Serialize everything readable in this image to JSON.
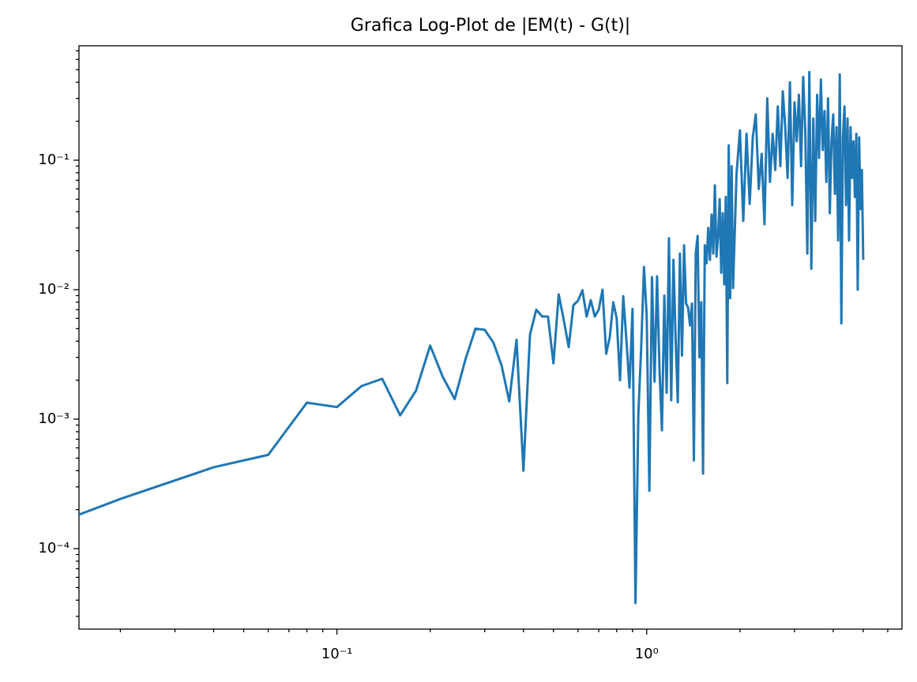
{
  "chart_data": {
    "type": "line",
    "title": "Grafica Log-Plot de |EM(t) - G(t)|",
    "xscale": "log",
    "yscale": "log",
    "grid": false,
    "xlim": [
      0.0147,
      6.67
    ],
    "ylim": [
      2.39e-05,
      0.765
    ],
    "xticks": [
      {
        "value": 0.1,
        "label": "10⁻¹"
      },
      {
        "value": 1,
        "label": "10⁰"
      }
    ],
    "yticks": [
      {
        "value": 0.0001,
        "label": "10⁻⁴"
      },
      {
        "value": 0.001,
        "label": "10⁻³"
      },
      {
        "value": 0.01,
        "label": "10⁻²"
      },
      {
        "value": 0.1,
        "label": "10⁻¹"
      }
    ],
    "xminorticks": [
      0.02,
      0.03,
      0.04,
      0.05,
      0.06,
      0.07,
      0.08,
      0.09,
      0.2,
      0.3,
      0.4,
      0.5,
      0.6,
      0.7,
      0.8,
      0.9,
      2,
      3,
      4,
      5,
      6
    ],
    "yminorticks": [
      3e-05,
      4e-05,
      5e-05,
      6e-05,
      7e-05,
      8e-05,
      9e-05,
      0.0002,
      0.0003,
      0.0004,
      0.0005,
      0.0006,
      0.0007,
      0.0008,
      0.0009,
      0.002,
      0.003,
      0.004,
      0.005,
      0.006,
      0.007,
      0.008,
      0.009,
      0.02,
      0.03,
      0.04,
      0.05,
      0.06,
      0.07,
      0.08,
      0.09,
      0.2,
      0.3,
      0.4,
      0.5,
      0.6,
      0.7
    ],
    "x": [
      0.0147,
      0.02,
      0.04,
      0.06,
      0.08,
      0.1,
      0.12,
      0.14,
      0.16,
      0.18,
      0.2,
      0.22,
      0.24,
      0.26,
      0.28,
      0.3,
      0.32,
      0.34,
      0.36,
      0.38,
      0.4,
      0.42,
      0.44,
      0.46,
      0.48,
      0.5,
      0.52,
      0.54,
      0.56,
      0.58,
      0.6,
      0.62,
      0.64,
      0.66,
      0.68,
      0.7,
      0.72,
      0.74,
      0.76,
      0.78,
      0.8,
      0.82,
      0.84,
      0.86,
      0.88,
      0.9,
      0.92,
      0.94,
      0.96,
      0.98,
      1.0,
      1.02,
      1.04,
      1.06,
      1.08,
      1.1,
      1.12,
      1.14,
      1.16,
      1.18,
      1.2,
      1.22,
      1.24,
      1.26,
      1.28,
      1.3,
      1.32,
      1.34,
      1.36,
      1.38,
      1.4,
      1.42,
      1.44,
      1.46,
      1.48,
      1.5,
      1.52,
      1.54,
      1.56,
      1.58,
      1.6,
      1.62,
      1.64,
      1.66,
      1.68,
      1.7,
      1.72,
      1.74,
      1.76,
      1.78,
      1.8,
      1.82,
      1.84,
      1.86,
      1.88,
      1.9,
      1.95,
      2.0,
      2.05,
      2.1,
      2.15,
      2.2,
      2.25,
      2.3,
      2.35,
      2.4,
      2.45,
      2.5,
      2.55,
      2.6,
      2.65,
      2.7,
      2.75,
      2.8,
      2.85,
      2.9,
      2.95,
      3.0,
      3.05,
      3.1,
      3.15,
      3.2,
      3.25,
      3.3,
      3.35,
      3.4,
      3.45,
      3.5,
      3.55,
      3.6,
      3.65,
      3.7,
      3.75,
      3.8,
      3.85,
      3.9,
      3.95,
      4.0,
      4.05,
      4.1,
      4.15,
      4.2,
      4.25,
      4.3,
      4.35,
      4.4,
      4.45,
      4.5,
      4.55,
      4.6,
      4.65,
      4.7,
      4.75,
      4.8,
      4.85,
      4.9,
      4.95,
      5.0
    ],
    "series": [
      {
        "color": "#1f77b4",
        "values": [
          0.000183,
          0.000242,
          0.000425,
          0.00053,
          0.00134,
          0.00124,
          0.0018,
          0.00205,
          0.00107,
          0.00166,
          0.0037,
          0.0021,
          0.00143,
          0.0029,
          0.005,
          0.0049,
          0.0039,
          0.0026,
          0.00137,
          0.0041,
          0.0004,
          0.0045,
          0.007,
          0.0062,
          0.0062,
          0.0027,
          0.0092,
          0.0058,
          0.0036,
          0.0076,
          0.0082,
          0.0099,
          0.0062,
          0.0083,
          0.0062,
          0.007,
          0.01,
          0.0032,
          0.0043,
          0.008,
          0.006,
          0.002,
          0.0089,
          0.0041,
          0.00175,
          0.0071,
          3.8e-05,
          0.0011,
          0.0036,
          0.015,
          0.0063,
          0.00028,
          0.0125,
          0.00195,
          0.0127,
          0.0024,
          0.00082,
          0.009,
          0.0016,
          0.025,
          0.0014,
          0.017,
          0.0041,
          0.00135,
          0.019,
          0.0031,
          0.022,
          0.0078,
          0.0073,
          0.0053,
          0.0078,
          0.00048,
          0.019,
          0.026,
          0.003,
          0.008,
          0.00038,
          0.022,
          0.016,
          0.03,
          0.017,
          0.038,
          0.019,
          0.064,
          0.018,
          0.026,
          0.05,
          0.0135,
          0.039,
          0.011,
          0.052,
          0.0019,
          0.13,
          0.0086,
          0.09,
          0.0103,
          0.079,
          0.17,
          0.034,
          0.16,
          0.046,
          0.15,
          0.226,
          0.06,
          0.112,
          0.032,
          0.3,
          0.068,
          0.16,
          0.084,
          0.26,
          0.09,
          0.34,
          0.18,
          0.073,
          0.4,
          0.045,
          0.28,
          0.14,
          0.32,
          0.09,
          0.44,
          0.17,
          0.019,
          0.48,
          0.0145,
          0.21,
          0.034,
          0.32,
          0.104,
          0.42,
          0.12,
          0.24,
          0.068,
          0.3,
          0.039,
          0.14,
          0.226,
          0.055,
          0.18,
          0.024,
          0.46,
          0.0055,
          0.15,
          0.26,
          0.045,
          0.21,
          0.024,
          0.18,
          0.073,
          0.14,
          0.052,
          0.16,
          0.01,
          0.15,
          0.042,
          0.084,
          0.017
        ]
      }
    ]
  }
}
